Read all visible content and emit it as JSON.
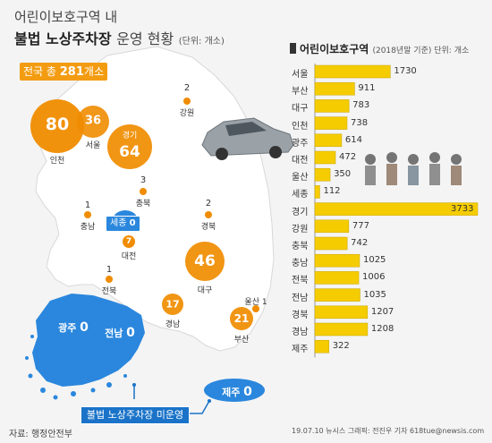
{
  "header": {
    "title_line1": "어린이보호구역 내",
    "title_line2_bold": "불법 노상주차장",
    "title_line2_rest": "운영 현황",
    "unit": "(단위: 개소)"
  },
  "map": {
    "total_prefix": "전국 총",
    "total_value": "281",
    "total_suffix": "개소",
    "legend_label": "불법 노상주차장 미운영",
    "regions": {
      "incheon": {
        "name": "인천",
        "value": "80"
      },
      "seoul": {
        "name": "서울",
        "value": "36"
      },
      "gyeonggi": {
        "name": "경기",
        "value": "64"
      },
      "gangwon": {
        "name": "강원",
        "value": "2"
      },
      "chungbuk": {
        "name": "충북",
        "value": "3"
      },
      "chungnam": {
        "name": "충남",
        "value": "1"
      },
      "sejong": {
        "name": "세종",
        "value": "0"
      },
      "daejeon": {
        "name": "대전",
        "value": "7"
      },
      "gyeongbuk": {
        "name": "경북",
        "value": "2"
      },
      "jeonbuk": {
        "name": "전북",
        "value": "1"
      },
      "daegu": {
        "name": "대구",
        "value": "46"
      },
      "gyeongnam": {
        "name": "경남",
        "value": "17"
      },
      "ulsan": {
        "name": "울산",
        "value": "1"
      },
      "busan": {
        "name": "부산",
        "value": "21"
      },
      "gwangju": {
        "name": "광주",
        "value": "0"
      },
      "jeonnam": {
        "name": "전남",
        "value": "0"
      },
      "jeju": {
        "name": "제주",
        "value": "0"
      }
    }
  },
  "chart_data": {
    "type": "bar",
    "orientation": "horizontal",
    "title": "어린이보호구역",
    "subtitle": "(2018년말 기준) 단위: 개소",
    "categories": [
      "서울",
      "부산",
      "대구",
      "인천",
      "광주",
      "대전",
      "울산",
      "세종",
      "경기",
      "강원",
      "충북",
      "충남",
      "전북",
      "전남",
      "경북",
      "경남",
      "제주"
    ],
    "values": [
      1730,
      911,
      783,
      738,
      614,
      472,
      350,
      112,
      3733,
      777,
      742,
      1025,
      1006,
      1035,
      1207,
      1208,
      322
    ],
    "xlim": [
      0,
      3733
    ],
    "colors": {
      "bar": "#f5cc00",
      "bar_border": "#c9a400"
    }
  },
  "footer": {
    "source": "자료: 행정안전부",
    "credit": "19.07.10 뉴시스 그래픽: 전진우 기자 618tue@newsis.com"
  },
  "colors": {
    "orange": "#f08c00",
    "blue": "#1a73c8",
    "land": "#ffffff"
  }
}
